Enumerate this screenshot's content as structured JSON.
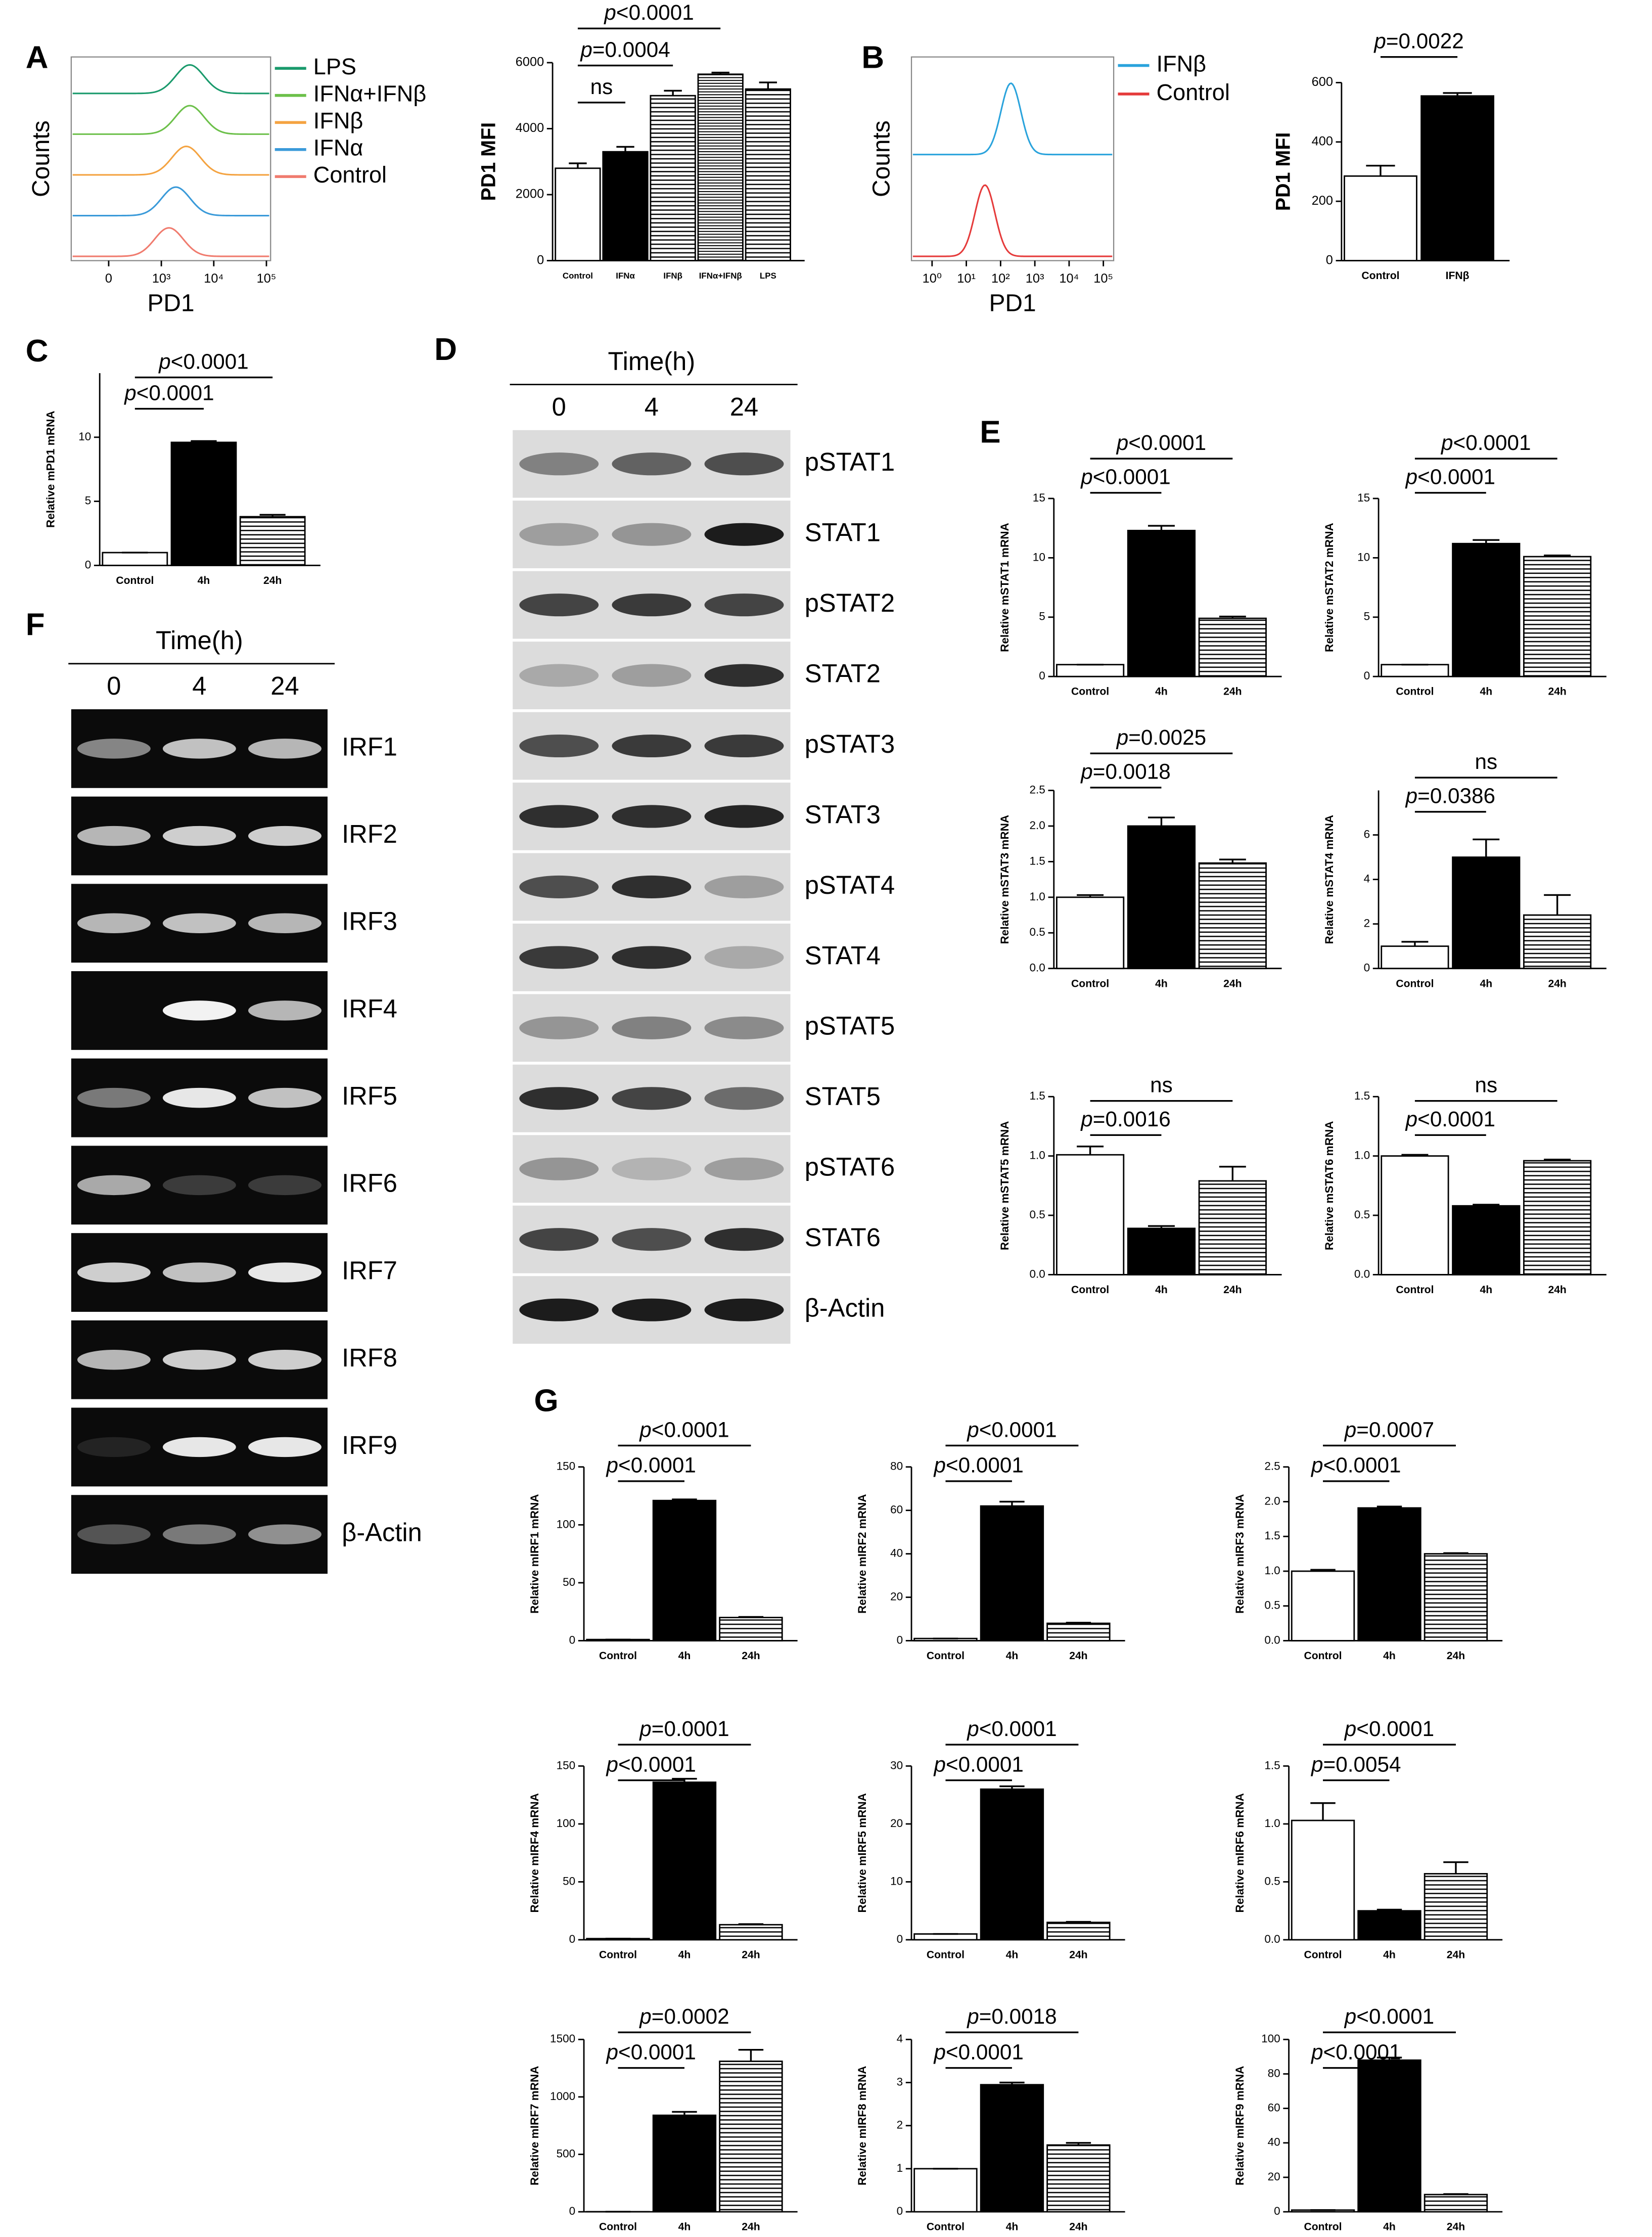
{
  "chart_data": [
    {
      "type": "flow",
      "panel": "A",
      "xlabel": "PD1",
      "ylabel": "Counts",
      "xscale": "biexponential",
      "xlim": [
        -500,
        120000
      ],
      "xticks": [
        {
          "value": 0,
          "label": "0"
        },
        {
          "value": 1000,
          "label": "10³"
        },
        {
          "value": 10000,
          "label": "10⁴"
        },
        {
          "value": 100000,
          "label": "10⁵"
        }
      ],
      "series": [
        {
          "name": "LPS",
          "color": "#1a9a6c",
          "peak": 3500
        },
        {
          "name": "IFNα+IFNβ",
          "color": "#6cc04a",
          "peak": 3500
        },
        {
          "name": "IFNβ",
          "color": "#f4a341",
          "peak": 3000
        },
        {
          "name": "IFNα",
          "color": "#3a9ad9",
          "peak": 1900
        },
        {
          "name": "Control",
          "color": "#f07b6e",
          "peak": 1400
        }
      ]
    },
    {
      "type": "bar",
      "ylabel": "PD1 MFI",
      "categories": [
        "Control",
        "IFNα",
        "IFNβ",
        "IFNα+IFNβ",
        "LPS"
      ],
      "values": [
        2800,
        3300,
        5000,
        5650,
        5200
      ],
      "errors": [
        150,
        150,
        150,
        50,
        200
      ],
      "fills": [
        "white",
        "black",
        "hstripe",
        "hstripe-fine",
        "hstripe"
      ],
      "ylim": [
        0,
        6000
      ],
      "yticks": [
        0,
        2000,
        4000,
        6000
      ],
      "comparisons": [
        {
          "label": "p<0.0001",
          "between": [
            "Control",
            "IFNα+IFNβ"
          ]
        },
        {
          "label": "p=0.0004",
          "between": [
            "Control",
            "IFNβ"
          ]
        },
        {
          "label": "ns",
          "between": [
            "Control",
            "IFNα"
          ]
        }
      ]
    },
    {
      "type": "flow",
      "panel": "B",
      "xlabel": "PD1",
      "ylabel": "Counts",
      "xscale": "log",
      "xlim": [
        0.25,
        200000
      ],
      "xticks": [
        {
          "value": 1,
          "label": "10⁰"
        },
        {
          "value": 10,
          "label": "10¹"
        },
        {
          "value": 100,
          "label": "10²"
        },
        {
          "value": 1000,
          "label": "10³"
        },
        {
          "value": 10000,
          "label": "10⁴"
        },
        {
          "value": 100000,
          "label": "10⁵"
        }
      ],
      "series": [
        {
          "name": "IFNβ",
          "color": "#2aa3dc",
          "peak": 200
        },
        {
          "name": "Control",
          "color": "#e53b3b",
          "peak": 35
        }
      ]
    },
    {
      "type": "bar",
      "ylabel": "PD1 MFI",
      "categories": [
        "Control",
        "IFNβ"
      ],
      "values": [
        285,
        555
      ],
      "errors": [
        35,
        10
      ],
      "fills": [
        "white",
        "black"
      ],
      "ylim": [
        0,
        600
      ],
      "yticks": [
        0,
        200,
        400,
        600
      ],
      "comparisons": [
        {
          "label": "p=0.0022",
          "between": [
            "Control",
            "IFNβ"
          ]
        }
      ]
    },
    {
      "type": "bar",
      "panel": "C",
      "ylabel": "Relative mPD1 mRNA",
      "categories": [
        "Control",
        "4h",
        "24h"
      ],
      "values": [
        1,
        9.6,
        3.8
      ],
      "errors": [
        0,
        0.1,
        0.15
      ],
      "fills": [
        "white",
        "black",
        "hstripe"
      ],
      "ylim": [
        0,
        15
      ],
      "yticks": [
        0,
        5,
        10
      ],
      "comparisons": [
        {
          "label": "p<0.0001",
          "between": [
            "Control",
            "24h"
          ]
        },
        {
          "label": "p<0.0001",
          "between": [
            "Control",
            "4h"
          ]
        }
      ]
    },
    {
      "type": "blot",
      "panel": "D",
      "title": "Time(h)",
      "lanes": [
        "0",
        "4",
        "24"
      ],
      "rows": [
        {
          "label": "pSTAT1",
          "bands": [
            0.45,
            0.6,
            0.7
          ]
        },
        {
          "label": "STAT1",
          "bands": [
            0.3,
            0.35,
            0.95
          ]
        },
        {
          "label": "pSTAT2",
          "bands": [
            0.75,
            0.8,
            0.75
          ]
        },
        {
          "label": "STAT2",
          "bands": [
            0.25,
            0.3,
            0.85
          ]
        },
        {
          "label": "pSTAT3",
          "bands": [
            0.7,
            0.8,
            0.8
          ]
        },
        {
          "label": "STAT3",
          "bands": [
            0.85,
            0.85,
            0.9
          ]
        },
        {
          "label": "pSTAT4",
          "bands": [
            0.7,
            0.85,
            0.3
          ]
        },
        {
          "label": "STAT4",
          "bands": [
            0.8,
            0.85,
            0.25
          ]
        },
        {
          "label": "pSTAT5",
          "bands": [
            0.35,
            0.45,
            0.4
          ]
        },
        {
          "label": "STAT5",
          "bands": [
            0.85,
            0.75,
            0.55
          ]
        },
        {
          "label": "pSTAT6",
          "bands": [
            0.35,
            0.2,
            0.3
          ]
        },
        {
          "label": "STAT6",
          "bands": [
            0.75,
            0.7,
            0.85
          ]
        },
        {
          "label": "β-Actin",
          "bands": [
            0.95,
            0.95,
            0.95
          ]
        }
      ]
    },
    {
      "type": "bar",
      "panel": "E",
      "ylabel": "Relative mSTAT1 mRNA",
      "categories": [
        "Control",
        "4h",
        "24h"
      ],
      "values": [
        1,
        12.3,
        4.9
      ],
      "errors": [
        0,
        0.4,
        0.15
      ],
      "fills": [
        "white",
        "black",
        "hstripe"
      ],
      "ylim": [
        0,
        15
      ],
      "yticks": [
        0,
        5,
        10,
        15
      ],
      "comparisons": [
        {
          "label": "p<0.0001",
          "between": [
            "Control",
            "24h"
          ]
        },
        {
          "label": "p<0.0001",
          "between": [
            "Control",
            "4h"
          ]
        }
      ]
    },
    {
      "type": "bar",
      "ylabel": "Relative mSTAT2 mRNA",
      "categories": [
        "Control",
        "4h",
        "24h"
      ],
      "values": [
        1,
        11.2,
        10.1
      ],
      "errors": [
        0,
        0.3,
        0.1
      ],
      "fills": [
        "white",
        "black",
        "hstripe"
      ],
      "ylim": [
        0,
        15
      ],
      "yticks": [
        0,
        5,
        10,
        15
      ],
      "comparisons": [
        {
          "label": "p<0.0001",
          "between": [
            "Control",
            "24h"
          ]
        },
        {
          "label": "p<0.0001",
          "between": [
            "Control",
            "4h"
          ]
        }
      ]
    },
    {
      "type": "bar",
      "ylabel": "Relative mSTAT3 mRNA",
      "categories": [
        "Control",
        "4h",
        "24h"
      ],
      "values": [
        1.0,
        2.0,
        1.48
      ],
      "errors": [
        0.03,
        0.12,
        0.05
      ],
      "fills": [
        "white",
        "black",
        "hstripe"
      ],
      "ylim": [
        0,
        2.5
      ],
      "yticks": [
        {
          "value": 0,
          "label": "0.0"
        },
        0.5,
        {
          "value": 1,
          "label": "1.0"
        },
        1.5,
        {
          "value": 2,
          "label": "2.0"
        },
        2.5
      ],
      "comparisons": [
        {
          "label": "p=0.0025",
          "between": [
            "Control",
            "24h"
          ]
        },
        {
          "label": "p=0.0018",
          "between": [
            "Control",
            "4h"
          ]
        }
      ]
    },
    {
      "type": "bar",
      "ylabel": "Relative mSTAT4 mRNA",
      "categories": [
        "Control",
        "4h",
        "24h"
      ],
      "values": [
        1,
        5.0,
        2.4
      ],
      "errors": [
        0.2,
        0.8,
        0.9
      ],
      "fills": [
        "white",
        "black",
        "hstripe"
      ],
      "ylim": [
        0,
        8
      ],
      "yticks": [
        0,
        2,
        4,
        6
      ],
      "comparisons": [
        {
          "label": "ns",
          "between": [
            "Control",
            "24h"
          ]
        },
        {
          "label": "p=0.0386",
          "between": [
            "Control",
            "4h"
          ]
        }
      ]
    },
    {
      "type": "bar",
      "ylabel": "Relative mSTAT5 mRNA",
      "categories": [
        "Control",
        "4h",
        "24h"
      ],
      "values": [
        1.01,
        0.39,
        0.79
      ],
      "errors": [
        0.07,
        0.02,
        0.12
      ],
      "fills": [
        "white",
        "black",
        "hstripe"
      ],
      "ylim": [
        0,
        1.5
      ],
      "yticks": [
        {
          "value": 0,
          "label": "0.0"
        },
        0.5,
        {
          "value": 1,
          "label": "1.0"
        },
        1.5
      ],
      "comparisons": [
        {
          "label": "ns",
          "between": [
            "Control",
            "24h"
          ]
        },
        {
          "label": "p=0.0016",
          "between": [
            "Control",
            "4h"
          ]
        }
      ]
    },
    {
      "type": "bar",
      "ylabel": "Relative mSTAT6 mRNA",
      "categories": [
        "Control",
        "4h",
        "24h"
      ],
      "values": [
        1.0,
        0.58,
        0.96
      ],
      "errors": [
        0.01,
        0.01,
        0.01
      ],
      "fills": [
        "white",
        "black",
        "hstripe"
      ],
      "ylim": [
        0,
        1.5
      ],
      "yticks": [
        {
          "value": 0,
          "label": "0.0"
        },
        0.5,
        {
          "value": 1,
          "label": "1.0"
        },
        1.5
      ],
      "comparisons": [
        {
          "label": "ns",
          "between": [
            "Control",
            "24h"
          ]
        },
        {
          "label": "p<0.0001",
          "between": [
            "Control",
            "4h"
          ]
        }
      ]
    },
    {
      "type": "gel",
      "panel": "F",
      "title": "Time(h)",
      "lanes": [
        "0",
        "4",
        "24"
      ],
      "rows": [
        {
          "label": "IRF1",
          "bands": [
            0.5,
            0.75,
            0.7
          ]
        },
        {
          "label": "IRF2",
          "bands": [
            0.7,
            0.8,
            0.8
          ]
        },
        {
          "label": "IRF3",
          "bands": [
            0.7,
            0.75,
            0.7
          ]
        },
        {
          "label": "IRF4",
          "bands": [
            0.0,
            0.95,
            0.7
          ]
        },
        {
          "label": "IRF5",
          "bands": [
            0.45,
            0.9,
            0.75
          ]
        },
        {
          "label": "IRF6",
          "bands": [
            0.65,
            0.2,
            0.2
          ]
        },
        {
          "label": "IRF7",
          "bands": [
            0.8,
            0.75,
            0.9
          ]
        },
        {
          "label": "IRF8",
          "bands": [
            0.7,
            0.8,
            0.8
          ]
        },
        {
          "label": "IRF9",
          "bands": [
            0.1,
            0.9,
            0.9
          ]
        },
        {
          "label": "β-Actin",
          "bands": [
            0.3,
            0.45,
            0.55
          ]
        }
      ]
    },
    {
      "type": "bar",
      "panel": "G",
      "ylabel": "Relative mIRF1 mRNA",
      "categories": [
        "Control",
        "4h",
        "24h"
      ],
      "values": [
        1,
        121,
        20
      ],
      "errors": [
        0,
        1,
        0.5
      ],
      "fills": [
        "white",
        "black",
        "hstripe"
      ],
      "ylim": [
        0,
        150
      ],
      "yticks": [
        0,
        50,
        100,
        150
      ],
      "comparisons": [
        {
          "label": "p<0.0001",
          "between": [
            "Control",
            "24h"
          ]
        },
        {
          "label": "p<0.0001",
          "between": [
            "Control",
            "4h"
          ]
        }
      ]
    },
    {
      "type": "bar",
      "ylabel": "Relative mIRF2 mRNA",
      "categories": [
        "Control",
        "4h",
        "24h"
      ],
      "values": [
        1,
        62,
        8
      ],
      "errors": [
        0,
        2,
        0.3
      ],
      "fills": [
        "white",
        "black",
        "hstripe"
      ],
      "ylim": [
        0,
        80
      ],
      "yticks": [
        0,
        20,
        40,
        60,
        80
      ],
      "comparisons": [
        {
          "label": "p<0.0001",
          "between": [
            "Control",
            "24h"
          ]
        },
        {
          "label": "p<0.0001",
          "between": [
            "Control",
            "4h"
          ]
        }
      ]
    },
    {
      "type": "bar",
      "ylabel": "Relative mIRF3 mRNA",
      "categories": [
        "Control",
        "4h",
        "24h"
      ],
      "values": [
        1.0,
        1.91,
        1.25
      ],
      "errors": [
        0.02,
        0.02,
        0.01
      ],
      "fills": [
        "white",
        "black",
        "hstripe"
      ],
      "ylim": [
        0,
        2.5
      ],
      "yticks": [
        {
          "value": 0,
          "label": "0.0"
        },
        0.5,
        {
          "value": 1,
          "label": "1.0"
        },
        1.5,
        {
          "value": 2,
          "label": "2.0"
        },
        2.5
      ],
      "comparisons": [
        {
          "label": "p=0.0007",
          "between": [
            "Control",
            "24h"
          ]
        },
        {
          "label": "p<0.0001",
          "between": [
            "Control",
            "4h"
          ]
        }
      ]
    },
    {
      "type": "bar",
      "ylabel": "Relative mIRF4 mRNA",
      "categories": [
        "Control",
        "4h",
        "24h"
      ],
      "values": [
        1,
        136,
        13
      ],
      "errors": [
        0,
        3,
        0.5
      ],
      "fills": [
        "white",
        "black",
        "hstripe"
      ],
      "ylim": [
        0,
        150
      ],
      "yticks": [
        0,
        50,
        100,
        150
      ],
      "comparisons": [
        {
          "label": "p=0.0001",
          "between": [
            "Control",
            "24h"
          ]
        },
        {
          "label": "p<0.0001",
          "between": [
            "Control",
            "4h"
          ]
        }
      ]
    },
    {
      "type": "bar",
      "ylabel": "Relative mIRF5 mRNA",
      "categories": [
        "Control",
        "4h",
        "24h"
      ],
      "values": [
        1,
        26,
        3
      ],
      "errors": [
        0,
        0.5,
        0.1
      ],
      "fills": [
        "white",
        "black",
        "hstripe"
      ],
      "ylim": [
        0,
        30
      ],
      "yticks": [
        0,
        10,
        20,
        30
      ],
      "comparisons": [
        {
          "label": "p<0.0001",
          "between": [
            "Control",
            "24h"
          ]
        },
        {
          "label": "p<0.0001",
          "between": [
            "Control",
            "4h"
          ]
        }
      ]
    },
    {
      "type": "bar",
      "ylabel": "Relative mIRF6 mRNA",
      "categories": [
        "Control",
        "4h",
        "24h"
      ],
      "values": [
        1.03,
        0.25,
        0.57
      ],
      "errors": [
        0.15,
        0.01,
        0.1
      ],
      "fills": [
        "white",
        "black",
        "hstripe"
      ],
      "ylim": [
        0,
        1.5
      ],
      "yticks": [
        {
          "value": 0,
          "label": "0.0"
        },
        0.5,
        {
          "value": 1,
          "label": "1.0"
        },
        1.5
      ],
      "comparisons": [
        {
          "label": "p<0.0001",
          "between": [
            "Control",
            "24h"
          ]
        },
        {
          "label": "p=0.0054",
          "between": [
            "Control",
            "4h"
          ]
        }
      ]
    },
    {
      "type": "bar",
      "ylabel": "Relative mIRF7 mRNA",
      "categories": [
        "Control",
        "4h",
        "24h"
      ],
      "values": [
        1,
        840,
        1310
      ],
      "errors": [
        0,
        30,
        100
      ],
      "fills": [
        "white",
        "black",
        "hstripe"
      ],
      "ylim": [
        0,
        1500
      ],
      "yticks": [
        0,
        500,
        1000,
        1500
      ],
      "comparisons": [
        {
          "label": "p=0.0002",
          "between": [
            "Control",
            "24h"
          ]
        },
        {
          "label": "p<0.0001",
          "between": [
            "Control",
            "4h"
          ]
        }
      ]
    },
    {
      "type": "bar",
      "ylabel": "Relative mIRF8 mRNA",
      "categories": [
        "Control",
        "4h",
        "24h"
      ],
      "values": [
        1,
        2.95,
        1.55
      ],
      "errors": [
        0,
        0.05,
        0.05
      ],
      "fills": [
        "white",
        "black",
        "hstripe"
      ],
      "ylim": [
        0,
        4
      ],
      "yticks": [
        0,
        1,
        2,
        3,
        4
      ],
      "comparisons": [
        {
          "label": "p=0.0018",
          "between": [
            "Control",
            "24h"
          ]
        },
        {
          "label": "p<0.0001",
          "between": [
            "Control",
            "4h"
          ]
        }
      ]
    },
    {
      "type": "bar",
      "ylabel": "Relative mIRF9 mRNA",
      "categories": [
        "Control",
        "4h",
        "24h"
      ],
      "values": [
        1,
        88,
        10
      ],
      "errors": [
        0,
        1.5,
        0.3
      ],
      "fills": [
        "white",
        "black",
        "hstripe"
      ],
      "ylim": [
        0,
        100
      ],
      "yticks": [
        0,
        20,
        40,
        60,
        80,
        100
      ],
      "comparisons": [
        {
          "label": "p<0.0001",
          "between": [
            "Control",
            "24h"
          ]
        },
        {
          "label": "p<0.0001",
          "between": [
            "Control",
            "4h"
          ]
        }
      ]
    }
  ]
}
